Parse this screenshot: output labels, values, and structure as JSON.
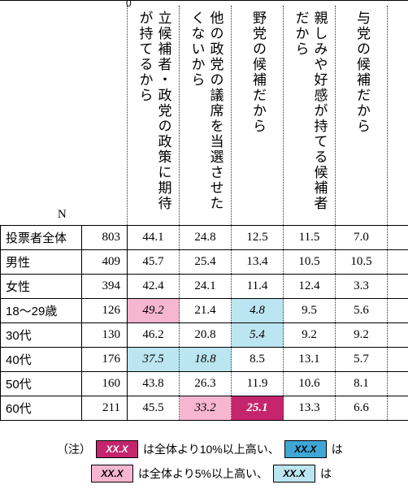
{
  "colors": {
    "hi10": "#c4256c",
    "hi5": "#f7b6cf",
    "lo10": "#3fa7d6",
    "lo5": "#bce5f2"
  },
  "corner_label": "N",
  "col_headers": [
    "立候補者・政党の政策に期待が持てるから",
    "他の政党の議席を当選させたくないから",
    "野党の候補だから",
    "親しみや好感が持てる候補者だから",
    "与党の候補だから"
  ],
  "rows": [
    {
      "label": "投票者全体",
      "n": "803",
      "cells": [
        {
          "v": "44.1",
          "hl": null
        },
        {
          "v": "24.8",
          "hl": null
        },
        {
          "v": "12.5",
          "hl": null
        },
        {
          "v": "11.5",
          "hl": null
        },
        {
          "v": "7.0",
          "hl": null
        }
      ]
    },
    {
      "label": "男性",
      "n": "409",
      "cells": [
        {
          "v": "45.7",
          "hl": null
        },
        {
          "v": "25.4",
          "hl": null
        },
        {
          "v": "13.4",
          "hl": null
        },
        {
          "v": "10.5",
          "hl": null
        },
        {
          "v": "10.5",
          "hl": null
        }
      ]
    },
    {
      "label": "女性",
      "n": "394",
      "cells": [
        {
          "v": "42.4",
          "hl": null
        },
        {
          "v": "24.1",
          "hl": null
        },
        {
          "v": "11.4",
          "hl": null
        },
        {
          "v": "12.4",
          "hl": null
        },
        {
          "v": "3.3",
          "hl": null
        }
      ]
    },
    {
      "label": "18～29歳",
      "n": "126",
      "cells": [
        {
          "v": "49.2",
          "hl": "hi5"
        },
        {
          "v": "21.4",
          "hl": null
        },
        {
          "v": "4.8",
          "hl": "lo5"
        },
        {
          "v": "9.5",
          "hl": null
        },
        {
          "v": "5.6",
          "hl": null
        }
      ]
    },
    {
      "label": "30代",
      "n": "130",
      "cells": [
        {
          "v": "46.2",
          "hl": null
        },
        {
          "v": "20.8",
          "hl": null
        },
        {
          "v": "5.4",
          "hl": "lo5"
        },
        {
          "v": "9.2",
          "hl": null
        },
        {
          "v": "9.2",
          "hl": null
        }
      ]
    },
    {
      "label": "40代",
      "n": "176",
      "cells": [
        {
          "v": "37.5",
          "hl": "lo5"
        },
        {
          "v": "18.8",
          "hl": "lo5"
        },
        {
          "v": "8.5",
          "hl": null
        },
        {
          "v": "13.1",
          "hl": null
        },
        {
          "v": "5.7",
          "hl": null
        }
      ]
    },
    {
      "label": "50代",
      "n": "160",
      "cells": [
        {
          "v": "43.8",
          "hl": null
        },
        {
          "v": "26.3",
          "hl": null
        },
        {
          "v": "11.9",
          "hl": null
        },
        {
          "v": "10.6",
          "hl": null
        },
        {
          "v": "8.1",
          "hl": null
        }
      ]
    },
    {
      "label": "60代",
      "n": "211",
      "cells": [
        {
          "v": "45.5",
          "hl": null
        },
        {
          "v": "33.2",
          "hl": "hi5"
        },
        {
          "v": "25.1",
          "hl": "hi10"
        },
        {
          "v": "13.3",
          "hl": null
        },
        {
          "v": "6.6",
          "hl": null
        }
      ]
    }
  ],
  "legend": {
    "note_label": "（注）",
    "sample": "XX.X",
    "hi10_text": "は全体より10%以上高い、",
    "hi5_text": "は全体より5%以上高い、",
    "lo_tail": "は"
  },
  "col_widths": {
    "label": 100,
    "n": 60,
    "data": 64
  },
  "font": {
    "header_serif": "Hiragino Mincho ProN",
    "body_size": 15
  }
}
